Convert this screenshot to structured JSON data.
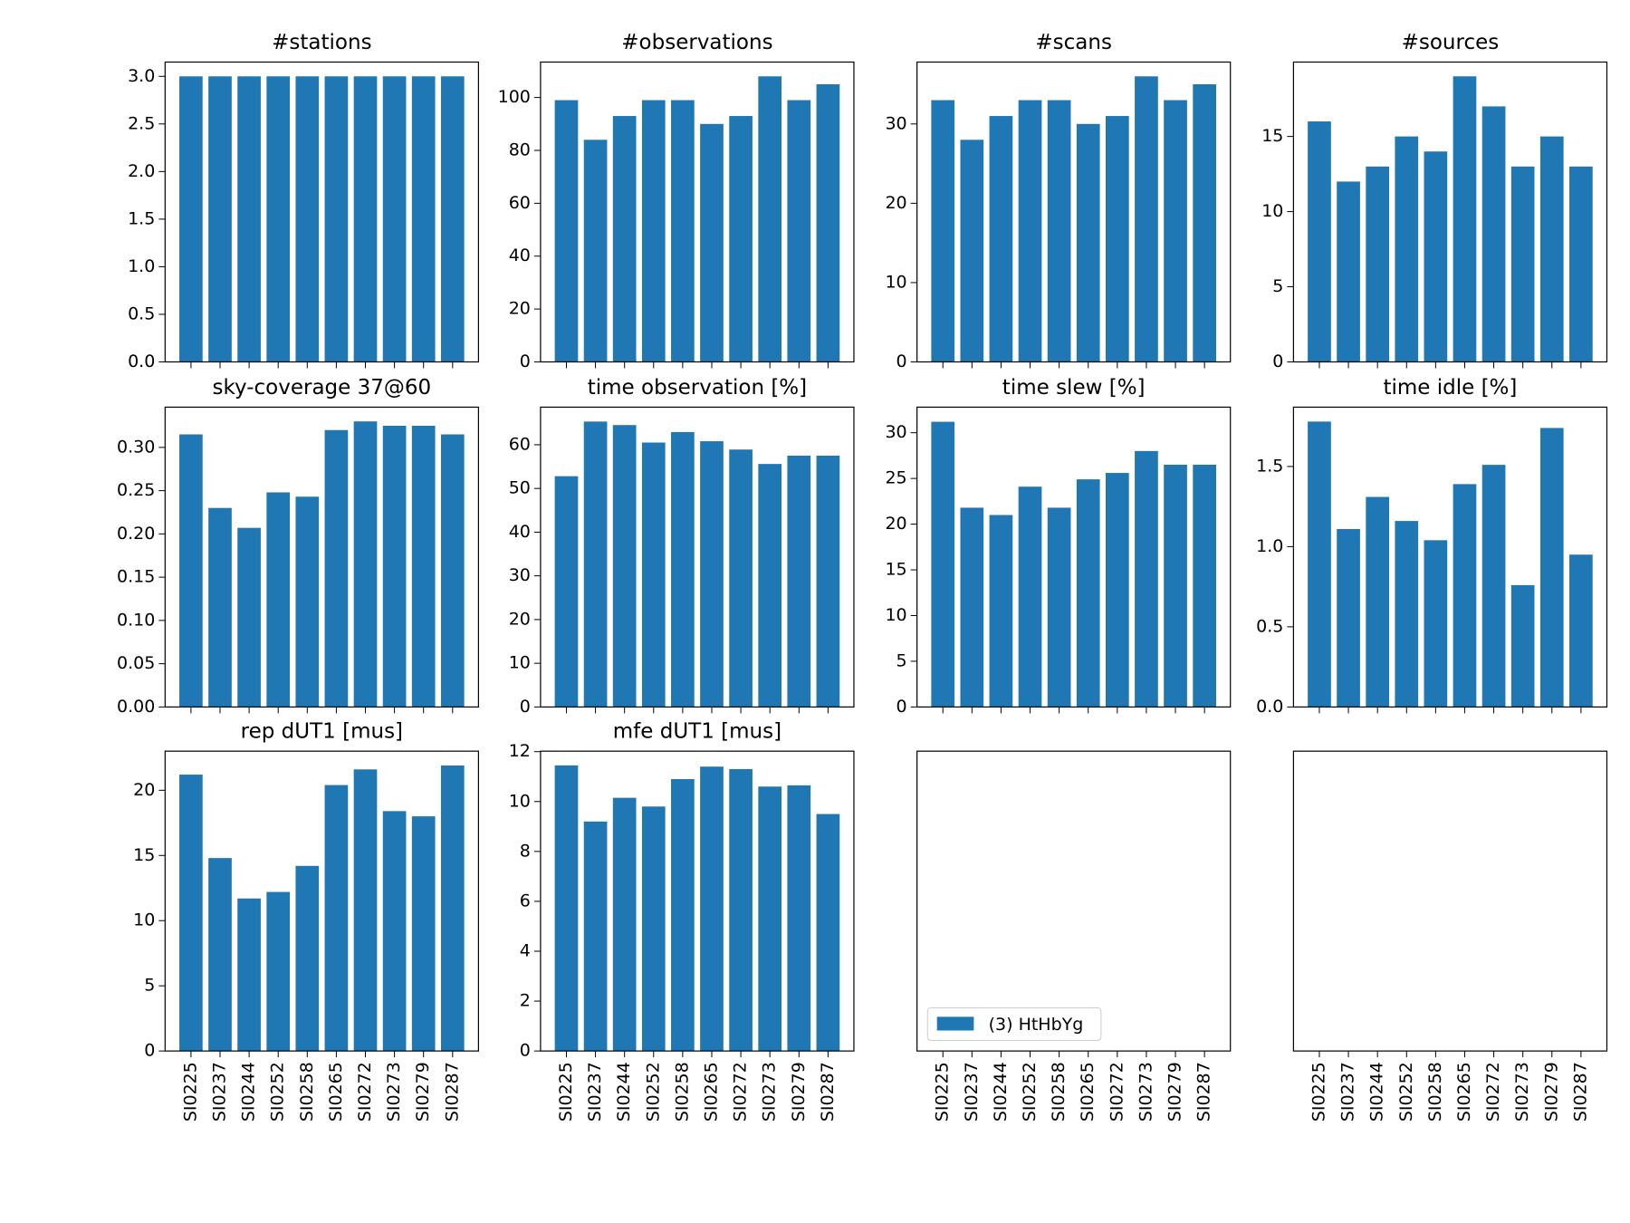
{
  "categories": [
    "SI0225",
    "SI0237",
    "SI0244",
    "SI0252",
    "SI0258",
    "SI0265",
    "SI0272",
    "SI0273",
    "SI0279",
    "SI0287"
  ],
  "color": "#1f77b4",
  "chart_data": [
    {
      "type": "bar",
      "title": "#stations",
      "values": [
        3,
        3,
        3,
        3,
        3,
        3,
        3,
        3,
        3,
        3
      ],
      "ylim": [
        0,
        3.15
      ],
      "yticks": [
        {
          "value": 0,
          "label": "0.0"
        },
        {
          "value": 0.5,
          "label": "0.5"
        },
        {
          "value": 1,
          "label": "1.0"
        },
        {
          "value": 1.5,
          "label": "1.5"
        },
        {
          "value": 2,
          "label": "2.0"
        },
        {
          "value": 2.5,
          "label": "2.5"
        },
        {
          "value": 3,
          "label": "3.0"
        }
      ]
    },
    {
      "type": "bar",
      "title": "#observations",
      "values": [
        99,
        84,
        93,
        99,
        99,
        90,
        93,
        108,
        99,
        105
      ],
      "ylim": [
        0,
        113.4
      ],
      "yticks": [
        0,
        20,
        40,
        60,
        80,
        100
      ]
    },
    {
      "type": "bar",
      "title": "#scans",
      "values": [
        33,
        28,
        31,
        33,
        33,
        30,
        31,
        36,
        33,
        35
      ],
      "ylim": [
        0,
        37.8
      ],
      "yticks": [
        0,
        10,
        20,
        30
      ]
    },
    {
      "type": "bar",
      "title": "#sources",
      "values": [
        16,
        12,
        13,
        15,
        14,
        19,
        17,
        13,
        15,
        13
      ],
      "ylim": [
        0,
        19.95
      ],
      "yticks": [
        0,
        5,
        10,
        15
      ]
    },
    {
      "type": "bar",
      "title": "sky-coverage 37@60",
      "values": [
        0.315,
        0.23,
        0.207,
        0.248,
        0.243,
        0.32,
        0.33,
        0.325,
        0.325,
        0.315
      ],
      "ylim": [
        0,
        0.3465
      ],
      "yticks": [
        {
          "value": 0,
          "label": "0.00"
        },
        {
          "value": 0.05,
          "label": "0.05"
        },
        {
          "value": 0.1,
          "label": "0.10"
        },
        {
          "value": 0.15,
          "label": "0.15"
        },
        {
          "value": 0.2,
          "label": "0.20"
        },
        {
          "value": 0.25,
          "label": "0.25"
        },
        {
          "value": 0.3,
          "label": "0.30"
        }
      ]
    },
    {
      "type": "bar",
      "title": "time observation [%]",
      "values": [
        52.8,
        65.3,
        64.5,
        60.5,
        62.9,
        60.8,
        58.9,
        55.6,
        57.5,
        57.5
      ],
      "ylim": [
        0,
        68.6
      ],
      "yticks": [
        0,
        10,
        20,
        30,
        40,
        50,
        60
      ]
    },
    {
      "type": "bar",
      "title": "time slew [%]",
      "values": [
        31.2,
        21.8,
        21.0,
        24.1,
        21.8,
        24.9,
        25.6,
        28.0,
        26.5,
        26.5
      ],
      "ylim": [
        0,
        32.8
      ],
      "yticks": [
        0,
        5,
        10,
        15,
        20,
        25,
        30
      ]
    },
    {
      "type": "bar",
      "title": "time idle [%]",
      "values": [
        1.78,
        1.11,
        1.31,
        1.16,
        1.04,
        1.39,
        1.51,
        0.76,
        1.74,
        0.95
      ],
      "ylim": [
        0,
        1.87
      ],
      "yticks": [
        {
          "value": 0,
          "label": "0.0"
        },
        {
          "value": 0.5,
          "label": "0.5"
        },
        {
          "value": 1,
          "label": "1.0"
        },
        {
          "value": 1.5,
          "label": "1.5"
        }
      ]
    },
    {
      "type": "bar",
      "title": "rep dUT1 [mus]",
      "values": [
        21.2,
        14.8,
        11.7,
        12.2,
        14.2,
        20.4,
        21.6,
        18.4,
        18.0,
        21.9
      ],
      "ylim": [
        0,
        23.0
      ],
      "yticks": [
        0,
        5,
        10,
        15,
        20
      ]
    },
    {
      "type": "bar",
      "title": "mfe dUT1 [mus]",
      "values": [
        11.45,
        9.2,
        10.15,
        9.8,
        10.9,
        11.4,
        11.3,
        10.6,
        10.65,
        9.5
      ],
      "ylim": [
        0,
        12.02
      ],
      "yticks": [
        0,
        2,
        4,
        6,
        8,
        10,
        12
      ]
    },
    {
      "type": "empty",
      "legend": {
        "label": "(3) HtHbYg",
        "corner": "lower left"
      }
    },
    {
      "type": "empty"
    }
  ]
}
